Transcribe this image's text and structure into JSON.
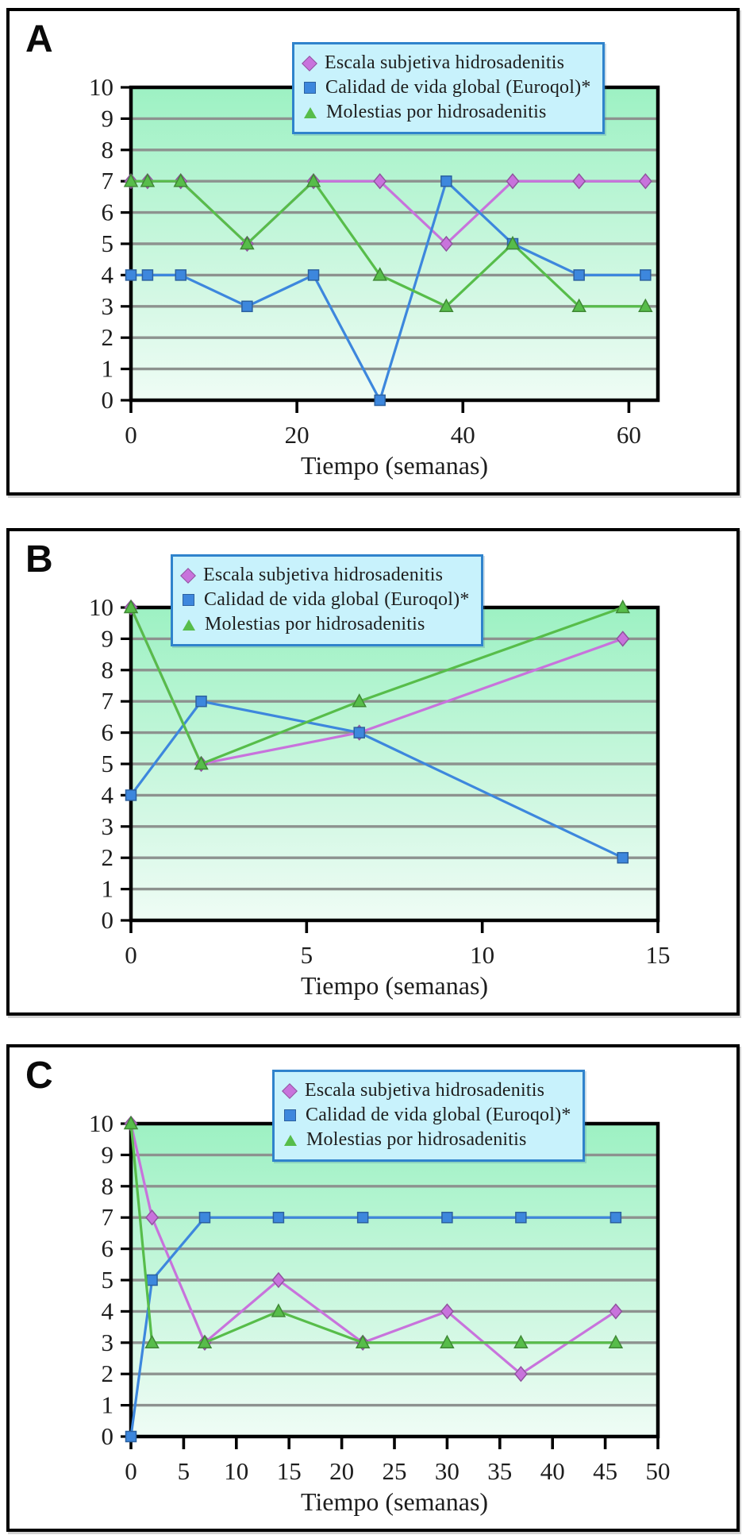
{
  "figure": {
    "xlabel": "Tiempo (semanas)",
    "legend_labels": [
      "Escala subjetiva hidrosadenitis",
      "Calidad de vida global (Euroqol)*",
      "Molestias por hidrosadenitis"
    ]
  },
  "style": {
    "series_colors": {
      "escala": "#c873dc",
      "calidad": "#3d87dd",
      "molestias": "#57bd4a"
    },
    "plot_gradient_top": "#9df1c3",
    "plot_gradient_bottom": "#effcf5",
    "gridline": "#8d928f",
    "axis": "#000000",
    "text": "#1d1d1d",
    "legend_bg": "#c8f2fc",
    "legend_border": "#2f83cc",
    "panel_border": "#000000"
  },
  "chart_data": [
    {
      "type": "line",
      "panel_label": "A",
      "xlabel": "Tiempo (semanas)",
      "ylabel": "",
      "ylim": [
        0,
        10
      ],
      "xlim": [
        0,
        63.5
      ],
      "y_ticks": [
        0,
        1,
        2,
        3,
        4,
        5,
        6,
        7,
        8,
        9,
        10
      ],
      "x_ticks": [
        {
          "value": 0,
          "label": "0"
        },
        {
          "value": 20,
          "label": "20"
        },
        {
          "value": 40,
          "label": "40"
        },
        {
          "value": 60,
          "label": "60"
        }
      ],
      "grid": "horizontal",
      "legend_position": "top-center-overlapping-plot",
      "x": [
        0,
        2,
        6,
        14,
        22,
        30,
        38,
        46,
        54,
        62
      ],
      "series": [
        {
          "name": "Escala subjetiva hidrosadenitis",
          "marker": "diamond",
          "color": "#c873dc",
          "values": [
            7,
            7,
            7,
            5,
            7,
            7,
            5,
            7,
            7,
            7
          ]
        },
        {
          "name": "Calidad de vida global (Euroqol)*",
          "marker": "square",
          "color": "#3d87dd",
          "values": [
            4,
            4,
            4,
            3,
            4,
            0,
            7,
            5,
            4,
            4
          ]
        },
        {
          "name": "Molestias por hidrosadenitis",
          "marker": "triangle",
          "color": "#57bd4a",
          "values": [
            7,
            7,
            7,
            5,
            7,
            4,
            3,
            5,
            3,
            3
          ]
        }
      ]
    },
    {
      "type": "line",
      "panel_label": "B",
      "xlabel": "Tiempo (semanas)",
      "ylabel": "",
      "ylim": [
        0,
        10
      ],
      "xlim": [
        0,
        15
      ],
      "y_ticks": [
        0,
        1,
        2,
        3,
        4,
        5,
        6,
        7,
        8,
        9,
        10
      ],
      "x_ticks": [
        {
          "value": 0,
          "label": "0"
        },
        {
          "value": 5,
          "label": "5"
        },
        {
          "value": 10,
          "label": "10"
        },
        {
          "value": 15,
          "label": "15"
        }
      ],
      "grid": "horizontal",
      "legend_position": "top-left-overlapping-plot",
      "x": [
        0,
        2,
        6.5,
        14
      ],
      "series": [
        {
          "name": "Escala subjetiva hidrosadenitis",
          "marker": "diamond",
          "color": "#c873dc",
          "values": [
            10,
            5,
            6,
            9
          ]
        },
        {
          "name": "Calidad de vida global (Euroqol)*",
          "marker": "square",
          "color": "#3d87dd",
          "values": [
            4,
            7,
            6,
            2
          ]
        },
        {
          "name": "Molestias por hidrosadenitis",
          "marker": "triangle",
          "color": "#57bd4a",
          "values": [
            10,
            5,
            7,
            10
          ]
        }
      ]
    },
    {
      "type": "line",
      "panel_label": "C",
      "xlabel": "Tiempo (semanas)",
      "ylabel": "",
      "ylim": [
        0,
        10
      ],
      "xlim": [
        0,
        50
      ],
      "y_ticks": [
        0,
        1,
        2,
        3,
        4,
        5,
        6,
        7,
        8,
        9,
        10
      ],
      "x_ticks": [
        {
          "value": 0,
          "label": "0"
        },
        {
          "value": 5,
          "label": "5"
        },
        {
          "value": 10,
          "label": "10"
        },
        {
          "value": 15,
          "label": "15"
        },
        {
          "value": 20,
          "label": "20"
        },
        {
          "value": 25,
          "label": "25"
        },
        {
          "value": 30,
          "label": "30"
        },
        {
          "value": 35,
          "label": "35"
        },
        {
          "value": 40,
          "label": "40"
        },
        {
          "value": 45,
          "label": "45"
        },
        {
          "value": 50,
          "label": "50"
        }
      ],
      "grid": "horizontal",
      "legend_position": "top-center-overlapping-plot",
      "x": [
        0,
        2,
        7,
        14,
        22,
        30,
        37,
        46
      ],
      "series": [
        {
          "name": "Escala subjetiva hidrosadenitis",
          "marker": "diamond",
          "color": "#c873dc",
          "values": [
            10,
            7,
            3,
            5,
            3,
            4,
            2,
            4
          ]
        },
        {
          "name": "Calidad de vida global (Euroqol)*",
          "marker": "square",
          "color": "#3d87dd",
          "values": [
            0,
            5,
            7,
            7,
            7,
            7,
            7,
            7
          ]
        },
        {
          "name": "Molestias por hidrosadenitis",
          "marker": "triangle",
          "color": "#57bd4a",
          "values": [
            10,
            3,
            3,
            4,
            3,
            3,
            3,
            3
          ]
        }
      ]
    }
  ]
}
